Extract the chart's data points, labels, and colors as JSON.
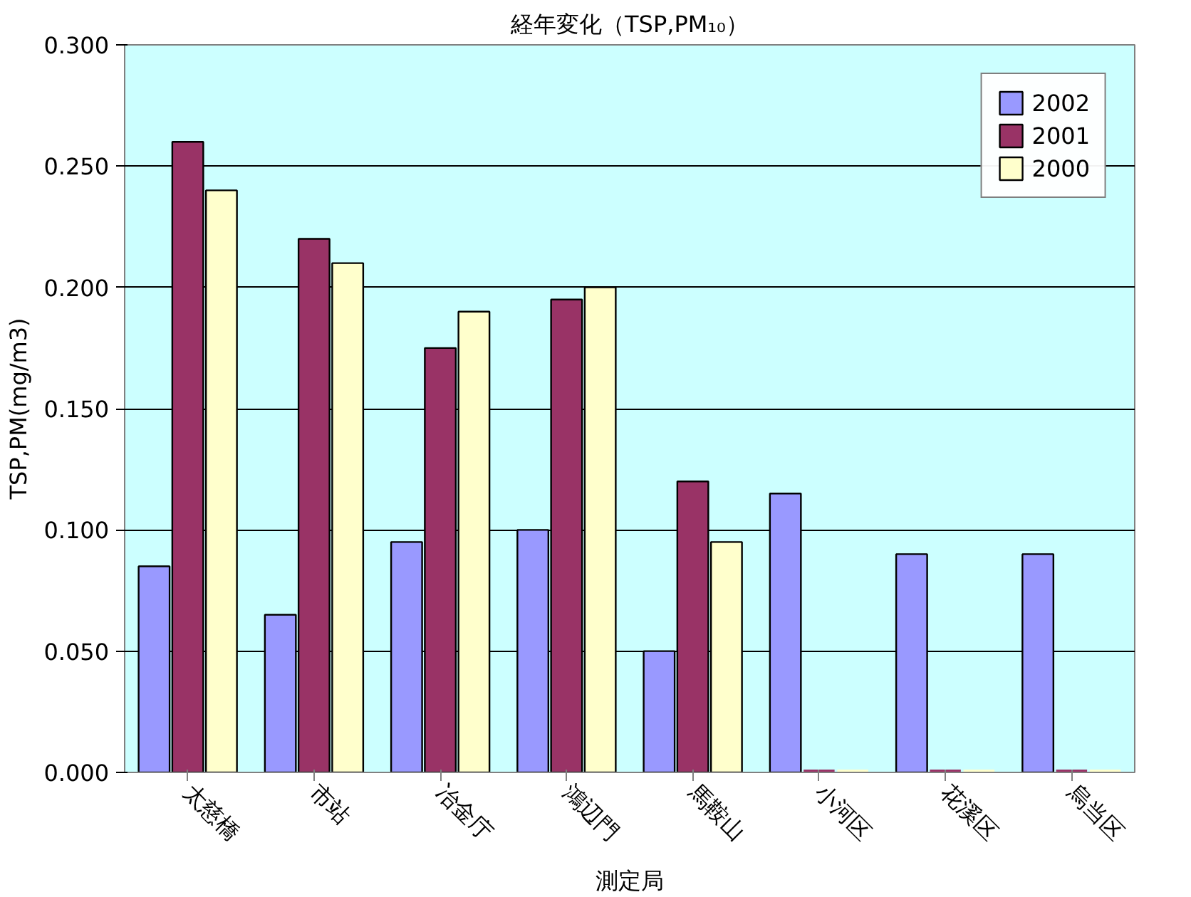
{
  "chart_data": {
    "type": "bar",
    "title": "経年変化（TSP,PM₁₀）",
    "xlabel": "測定局",
    "ylabel": "TSP,PM(mg/m3)",
    "categories": [
      "太慈橋",
      "市站",
      "冶金庁",
      "鴻辺門",
      "馬鞍山",
      "小河区",
      "花溪区",
      "烏当区"
    ],
    "series": [
      {
        "name": "2002",
        "color": "#9999ff",
        "values": [
          0.085,
          0.065,
          0.095,
          0.1,
          0.05,
          0.115,
          0.09,
          0.09
        ]
      },
      {
        "name": "2001",
        "color": "#993366",
        "values": [
          0.26,
          0.22,
          0.175,
          0.195,
          0.12,
          0,
          0,
          0
        ]
      },
      {
        "name": "2000",
        "color": "#ffffcc",
        "values": [
          0.24,
          0.21,
          0.19,
          0.2,
          0.095,
          0,
          0,
          0
        ]
      }
    ],
    "ylim": [
      0,
      0.3
    ],
    "yticks": [
      {
        "value": 0,
        "label": "0.000"
      },
      {
        "value": 0.05,
        "label": "0.050"
      },
      {
        "value": 0.1,
        "label": "0.100"
      },
      {
        "value": 0.15,
        "label": "0.150"
      },
      {
        "value": 0.2,
        "label": "0.200"
      },
      {
        "value": 0.25,
        "label": "0.250"
      },
      {
        "value": 0.3,
        "label": "0.300"
      }
    ],
    "grid": "y",
    "legend": "top right"
  }
}
